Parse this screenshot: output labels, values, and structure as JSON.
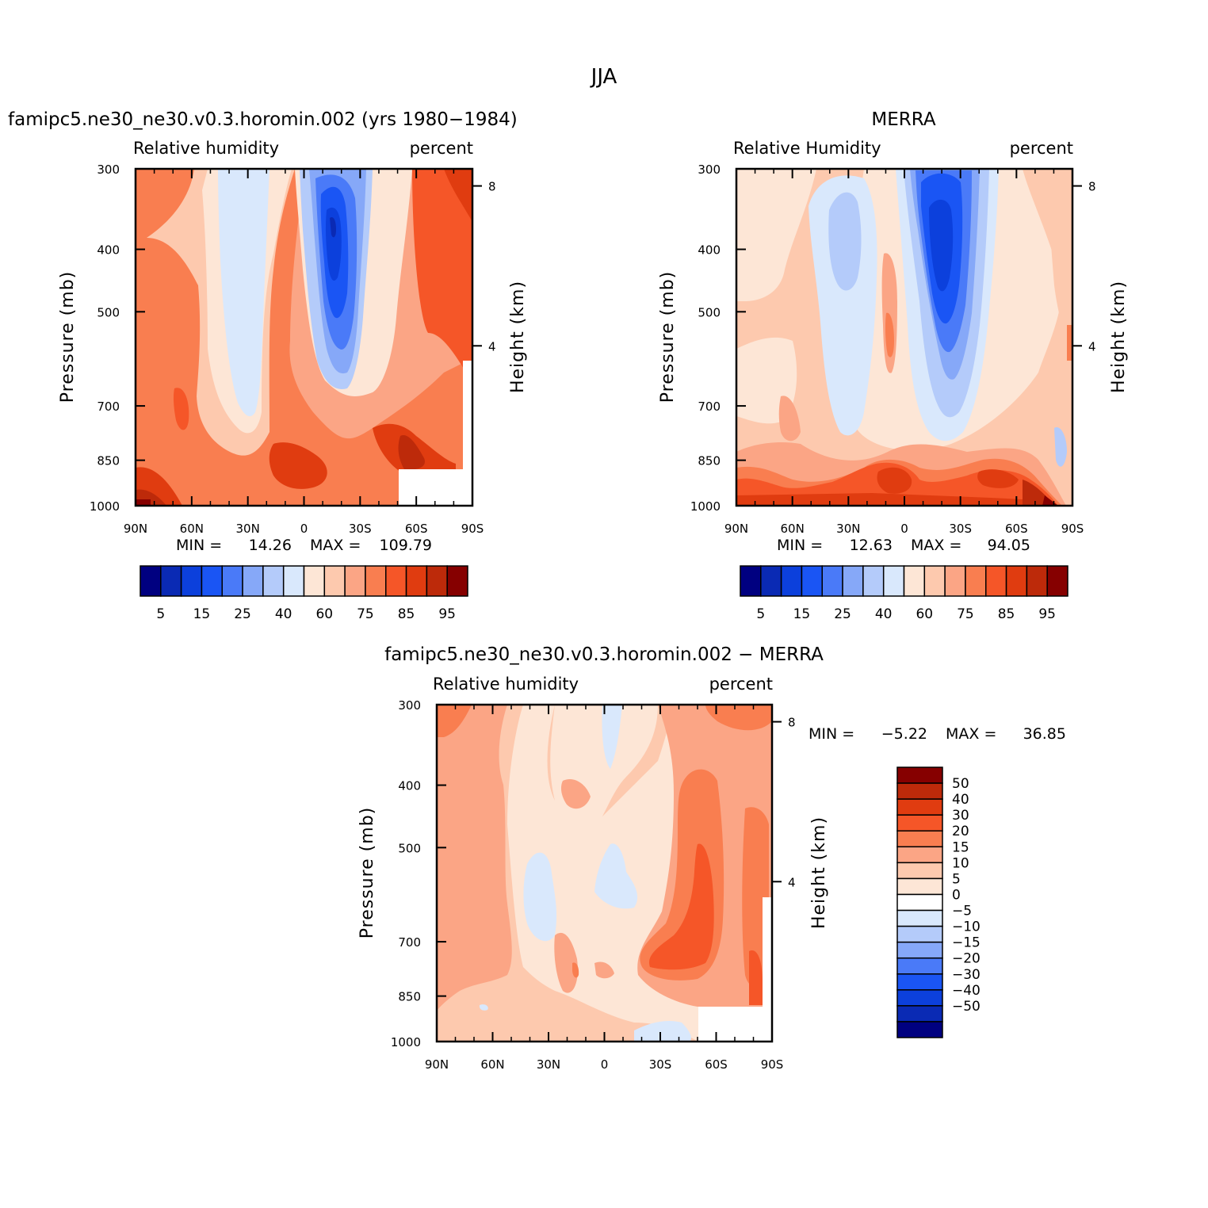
{
  "figure_title": "JJA",
  "chart_data": [
    {
      "type": "heatmap",
      "title": "famipc5.ne30_ne30.v0.3.horomin.002 (yrs 1980−1984)",
      "left_label": "Relative humidity",
      "right_label": "percent",
      "ylabel": "Pressure (mb)",
      "ylabel_right": "Height (km)",
      "x_ticks": [
        "90N",
        "60N",
        "30N",
        "0",
        "30S",
        "60S",
        "90S"
      ],
      "y_ticks": [
        "300",
        "400",
        "500",
        "700",
        "850",
        "1000"
      ],
      "y_right_ticks": [
        "8",
        "4"
      ],
      "min_label": "MIN =",
      "min_value": "14.26",
      "max_label": "MAX =",
      "max_value": "109.79",
      "colorbar_labels": [
        "5",
        "15",
        "25",
        "40",
        "60",
        "75",
        "85",
        "95"
      ]
    },
    {
      "type": "heatmap",
      "title": "MERRA",
      "left_label": "Relative Humidity",
      "right_label": "percent",
      "ylabel": "Pressure (mb)",
      "ylabel_right": "Height (km)",
      "x_ticks": [
        "90N",
        "60N",
        "30N",
        "0",
        "30S",
        "60S",
        "90S"
      ],
      "y_ticks": [
        "300",
        "400",
        "500",
        "700",
        "850",
        "1000"
      ],
      "y_right_ticks": [
        "8",
        "4"
      ],
      "min_label": "MIN =",
      "min_value": "12.63",
      "max_label": "MAX =",
      "max_value": "94.05",
      "colorbar_labels": [
        "5",
        "15",
        "25",
        "40",
        "60",
        "75",
        "85",
        "95"
      ]
    },
    {
      "type": "heatmap",
      "title": "famipc5.ne30_ne30.v0.3.horomin.002 − MERRA",
      "left_label": "Relative humidity",
      "right_label": "percent",
      "ylabel": "Pressure (mb)",
      "ylabel_right": "Height (km)",
      "x_ticks": [
        "90N",
        "60N",
        "30N",
        "0",
        "30S",
        "60S",
        "90S"
      ],
      "y_ticks": [
        "300",
        "400",
        "500",
        "700",
        "850",
        "1000"
      ],
      "y_right_ticks": [
        "8",
        "4"
      ],
      "min_label": "MIN =",
      "min_value": "−5.22",
      "max_label": "MAX =",
      "max_value": "36.85",
      "colorbar_labels": [
        "50",
        "40",
        "30",
        "20",
        "15",
        "10",
        "5",
        "0",
        "−5",
        "−10",
        "−15",
        "−20",
        "−30",
        "−40",
        "−50"
      ]
    }
  ],
  "colors": {
    "abs_scale": [
      "#000080",
      "#0a2ab4",
      "#0c40dc",
      "#1a55f4",
      "#4a7af8",
      "#86a8f8",
      "#b4cbfa",
      "#d9e8fc",
      "#fde6d6",
      "#fdc9ae",
      "#fba585",
      "#f97e50",
      "#f55628",
      "#e03c10",
      "#bd2a0a",
      "#860000"
    ],
    "diff_scale": [
      "#860000",
      "#bd2a0a",
      "#e03c10",
      "#f55628",
      "#f97e50",
      "#fba585",
      "#fdc9ae",
      "#fde6d6",
      "#ffffff",
      "#d9e8fc",
      "#b4cbfa",
      "#86a8f8",
      "#4a7af8",
      "#1a55f4",
      "#0c40dc",
      "#0a2ab4",
      "#000080"
    ]
  }
}
